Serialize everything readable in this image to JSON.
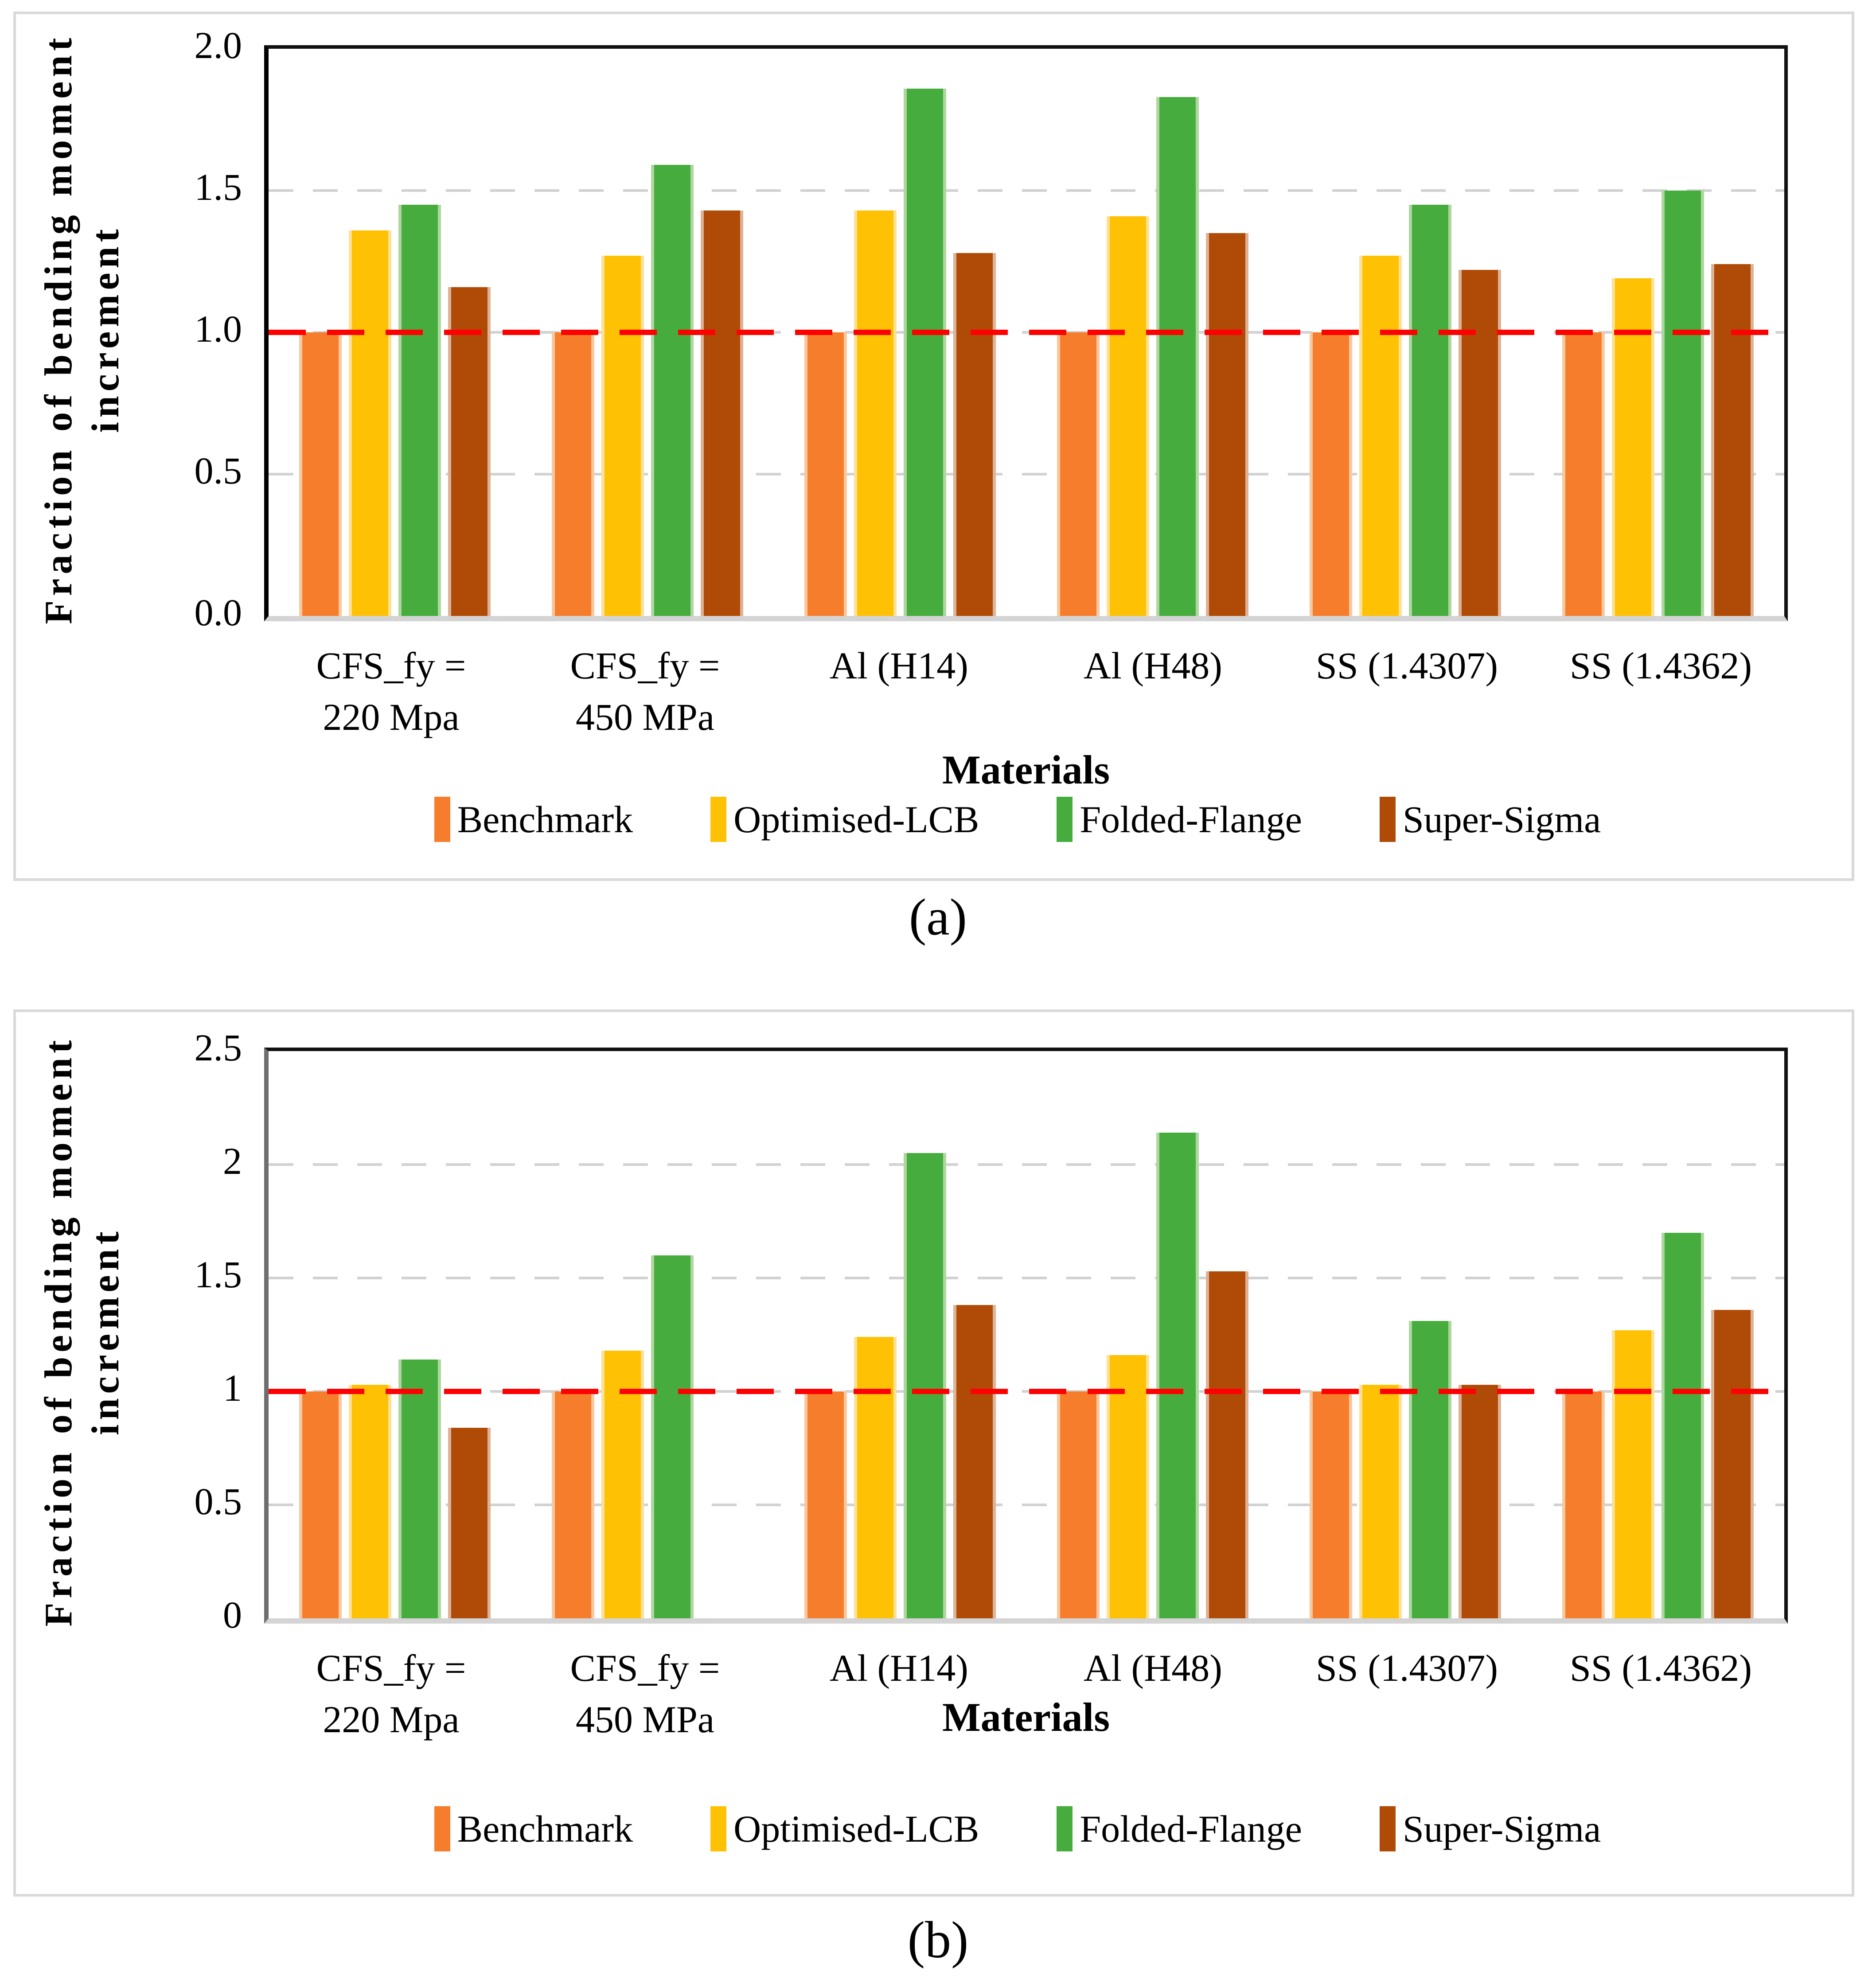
{
  "figure": {
    "caption_a": "(a)",
    "caption_b": "(b)",
    "y_axis_title_line1": "Fraction of bending moment",
    "y_axis_title_line2": "increment",
    "x_axis_title": "Materials",
    "reference_line_value": 1.0
  },
  "colors": {
    "reference_line": "#ff0000",
    "gridline": "#d2d2d2",
    "plot_border": "#111111",
    "axis_bottom": "#d4d4d4",
    "panel_border": "#d9d9d9",
    "text": "#000000"
  },
  "series_meta": [
    {
      "name": "Benchmark",
      "color": "#f67d2c",
      "edge": "#fac89f"
    },
    {
      "name": "Optimised-LCB",
      "color": "#ffc103",
      "edge": "#ffe195"
    },
    {
      "name": "Folded-Flange",
      "color": "#46ac3d",
      "edge": "#aed79f"
    },
    {
      "name": "Super-Sigma",
      "color": "#b04b07",
      "edge": "#ddb295"
    }
  ],
  "category_lines": [
    [
      "CFS_fy =",
      "220 Mpa"
    ],
    [
      "CFS_fy =",
      "450 MPa"
    ],
    [
      "Al (H14)",
      ""
    ],
    [
      "Al (H48)",
      ""
    ],
    [
      "SS (1.4307)",
      ""
    ],
    [
      "SS (1.4362)",
      ""
    ]
  ],
  "chart_data": [
    {
      "id": "a",
      "type": "bar",
      "title": "",
      "xlabel": "Materials",
      "ylabel": "Fraction of bending moment increment",
      "ylim": [
        0,
        2.0
      ],
      "grid": "dashed-horizontal",
      "legend_position": "bottom",
      "reference_line": 1.0,
      "yticks": [
        {
          "value": 0.0,
          "label": "0.0"
        },
        {
          "value": 0.5,
          "label": "0.5"
        },
        {
          "value": 1.0,
          "label": "1.0"
        },
        {
          "value": 1.5,
          "label": "1.5"
        },
        {
          "value": 2.0,
          "label": "2.0"
        }
      ],
      "categories": [
        "CFS_fy = 220 Mpa",
        "CFS_fy = 450 MPa",
        "Al (H14)",
        "Al (H48)",
        "SS (1.4307)",
        "SS (1.4362)"
      ],
      "series": [
        {
          "name": "Benchmark",
          "values": [
            1.0,
            1.0,
            1.0,
            1.0,
            1.0,
            1.0
          ]
        },
        {
          "name": "Optimised-LCB",
          "values": [
            1.36,
            1.27,
            1.43,
            1.41,
            1.27,
            1.19
          ]
        },
        {
          "name": "Folded-Flange",
          "values": [
            1.45,
            1.59,
            1.86,
            1.83,
            1.45,
            1.5
          ]
        },
        {
          "name": "Super-Sigma",
          "values": [
            1.16,
            1.43,
            1.28,
            1.35,
            1.22,
            1.24
          ]
        }
      ]
    },
    {
      "id": "b",
      "type": "bar",
      "title": "",
      "xlabel": "Materials",
      "ylabel": "Fraction of bending moment increment",
      "ylim": [
        0,
        2.5
      ],
      "grid": "dashed-horizontal",
      "legend_position": "bottom",
      "reference_line": 1.0,
      "yticks": [
        {
          "value": 0.0,
          "label": "0"
        },
        {
          "value": 0.5,
          "label": "0.5"
        },
        {
          "value": 1.0,
          "label": "1"
        },
        {
          "value": 1.5,
          "label": "1.5"
        },
        {
          "value": 2.0,
          "label": "2"
        },
        {
          "value": 2.5,
          "label": "2.5"
        }
      ],
      "categories": [
        "CFS_fy = 220 Mpa",
        "CFS_fy = 450 MPa",
        "Al (H14)",
        "Al (H48)",
        "SS (1.4307)",
        "SS (1.4362)"
      ],
      "series": [
        {
          "name": "Benchmark",
          "values": [
            1.0,
            1.0,
            1.0,
            1.0,
            1.0,
            1.0
          ]
        },
        {
          "name": "Optimised-LCB",
          "values": [
            1.03,
            1.18,
            1.24,
            1.16,
            1.03,
            1.27
          ]
        },
        {
          "name": "Folded-Flange",
          "values": [
            1.14,
            1.6,
            2.05,
            2.14,
            1.31,
            1.7
          ]
        },
        {
          "name": "Super-Sigma",
          "values": [
            0.84,
            null,
            1.38,
            1.53,
            1.03,
            1.36
          ]
        }
      ]
    }
  ]
}
